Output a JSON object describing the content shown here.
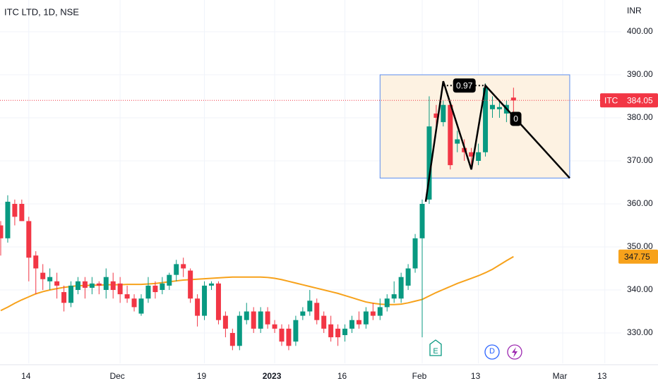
{
  "chart_data": {
    "type": "candlestick",
    "title": "ITC LTD, 1D, NSE",
    "currency": "INR",
    "symbol": "ITC",
    "categories": [
      null,
      null,
      null,
      null,
      "14",
      null,
      null,
      null,
      null,
      null,
      null,
      null,
      null,
      null,
      null,
      null,
      null,
      "Dec",
      null,
      null,
      null,
      null,
      null,
      null,
      null,
      null,
      null,
      null,
      null,
      "19",
      null,
      null,
      null,
      null,
      null,
      null,
      null,
      null,
      null,
      "2023",
      null,
      null,
      null,
      null,
      null,
      null,
      null,
      null,
      null,
      "16",
      null,
      null,
      null,
      null,
      null,
      null,
      null,
      null,
      null,
      null,
      "Feb",
      null,
      null,
      null,
      null,
      null,
      null,
      null,
      "13",
      null,
      null,
      null,
      null,
      null,
      null,
      null,
      null,
      null,
      null,
      null,
      "Mar",
      null,
      null,
      null,
      null,
      null,
      "13"
    ],
    "open": [
      355,
      352,
      360,
      360,
      356,
      348,
      344,
      342,
      342,
      339.5,
      337,
      340,
      342,
      340.5,
      341.5,
      340,
      342,
      341.5,
      339,
      338,
      334.5,
      338,
      341,
      340,
      341,
      343.5,
      346,
      344.5,
      338,
      334,
      341,
      341.5,
      334,
      330,
      327,
      333,
      335,
      331,
      335,
      332,
      331,
      331,
      328,
      334,
      335,
      337,
      334,
      332,
      331,
      329.5,
      331,
      333,
      332,
      335,
      334,
      336,
      338,
      338,
      341,
      345,
      352,
      361,
      381,
      379,
      383,
      374,
      373,
      372,
      370,
      372,
      382,
      382,
      381,
      384.7,
      null,
      null,
      null,
      null,
      null,
      null,
      null,
      null,
      null,
      null,
      null,
      null,
      null
    ],
    "high": [
      356,
      362,
      361,
      361,
      357,
      349,
      346,
      345,
      344,
      341,
      342,
      343,
      343,
      343,
      342,
      345,
      344,
      343,
      341,
      339,
      339,
      343,
      342,
      343,
      344,
      347,
      347.5,
      345,
      339,
      342,
      342,
      342,
      335,
      331,
      335,
      337,
      336,
      336,
      336,
      333,
      332,
      332,
      334,
      336,
      340,
      338,
      335,
      334,
      332,
      332,
      334,
      335,
      336,
      337,
      338,
      339,
      342,
      344,
      346,
      353,
      361,
      385,
      383,
      384,
      384,
      377,
      375,
      373,
      374,
      388,
      385,
      384,
      384,
      387,
      null,
      null,
      null,
      null,
      null,
      null,
      null,
      null,
      null,
      null,
      null,
      null,
      null
    ],
    "low": [
      348,
      351,
      355,
      356,
      342,
      339,
      340,
      340,
      338,
      335,
      336,
      339,
      338,
      339,
      339,
      338,
      338,
      337,
      337,
      335,
      334,
      337,
      338,
      339,
      340,
      342,
      343,
      337,
      331.5,
      333,
      340,
      332,
      329,
      326,
      326,
      332,
      330,
      330,
      331,
      330,
      327,
      326,
      327,
      333,
      334,
      332,
      330,
      328,
      327,
      328,
      330,
      331,
      331,
      333,
      333,
      335,
      337,
      337,
      340,
      344,
      329,
      360,
      377,
      378,
      368,
      372,
      370,
      368,
      369,
      371,
      380,
      380,
      379,
      381,
      null,
      null,
      null,
      null,
      null,
      null,
      null,
      null,
      null,
      null,
      null,
      null,
      null
    ],
    "close": [
      352,
      360.5,
      357,
      356,
      347.5,
      345,
      342.5,
      343,
      341,
      337,
      341,
      342,
      340.5,
      341.5,
      341,
      343,
      340,
      339,
      338,
      336,
      338,
      341,
      339.5,
      341.5,
      343.5,
      346,
      345,
      338,
      334,
      341,
      341.5,
      333,
      331,
      327,
      334,
      335,
      331,
      335,
      332,
      331,
      328,
      327,
      333,
      335,
      337.5,
      333,
      331,
      329,
      329,
      331,
      333,
      332,
      335,
      334,
      336,
      338,
      339,
      343,
      345,
      352,
      360,
      378,
      380,
      383,
      369,
      375,
      372,
      371,
      372,
      387,
      383,
      382.5,
      383,
      384.05,
      null,
      null,
      null,
      null,
      null,
      null,
      null,
      null,
      null,
      null,
      null,
      null,
      null
    ],
    "up_color": "#089981",
    "down_color": "#f23645",
    "ma": {
      "color": "#f7a21b",
      "values": [
        335.2,
        336,
        336.9,
        337.7,
        338.4,
        339.1,
        339.6,
        340,
        340.3,
        340.6,
        340.8,
        341,
        341,
        341.1,
        341.1,
        341.2,
        341.2,
        341.2,
        341.3,
        341.3,
        341.3,
        341.4,
        341.5,
        341.7,
        341.9,
        342.1,
        342.3,
        342.4,
        342.5,
        342.6,
        342.7,
        342.8,
        342.9,
        343,
        343,
        343,
        343,
        343,
        342.9,
        342.7,
        342.4,
        342,
        341.6,
        341.2,
        340.8,
        340.4,
        340,
        339.6,
        339.2,
        338.7,
        338.2,
        337.7,
        337.2,
        336.9,
        336.7,
        336.6,
        336.6,
        336.7,
        337,
        337.4,
        337.8,
        338.6,
        339.4,
        340.1,
        340.8,
        341.5,
        342.1,
        342.7,
        343.3,
        344,
        344.8,
        345.8,
        346.8,
        347.75,
        null,
        null,
        null,
        null,
        null,
        null,
        null,
        null,
        null,
        null,
        null,
        null,
        null
      ]
    },
    "ylim": [
      322.95,
      407.38
    ],
    "yticks": [
      {
        "value": 330,
        "label": "330.00"
      },
      {
        "value": 340,
        "label": "340.00"
      },
      {
        "value": 350,
        "label": "350.00"
      },
      {
        "value": 360,
        "label": "360.00"
      },
      {
        "value": 370,
        "label": "370.00"
      },
      {
        "value": 380,
        "label": "380.00"
      },
      {
        "value": 390,
        "label": "390.00"
      },
      {
        "value": 400,
        "label": "400.00"
      }
    ],
    "grid": true,
    "box": {
      "x": [
        54,
        81
      ],
      "y": [
        366,
        390
      ],
      "color": "#fdf2e2",
      "border": "#5b8def"
    },
    "zigzag": {
      "x": [
        60.5,
        63,
        67,
        69,
        81
      ],
      "y": [
        360.5,
        388.5,
        368,
        387.5,
        366
      ]
    },
    "ratio_label": "0.97",
    "level_label": "0",
    "events": [
      "E",
      "D"
    ]
  }
}
